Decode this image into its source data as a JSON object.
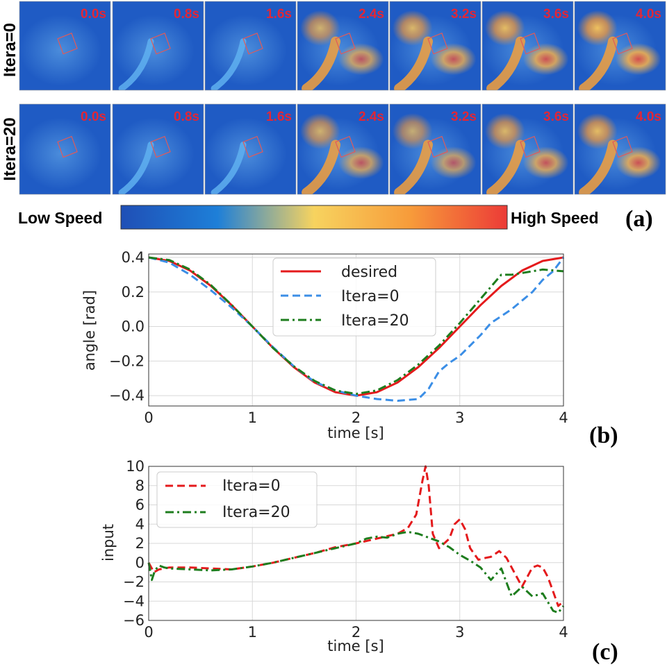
{
  "panel_a": {
    "rows": [
      {
        "label": "Itera=0",
        "times": [
          "0.0s",
          "0.8s",
          "1.6s",
          "2.4s",
          "3.2s",
          "3.6s",
          "4.0s"
        ]
      },
      {
        "label": "Itera=20",
        "times": [
          "0.0s",
          "0.8s",
          "1.6s",
          "2.4s",
          "3.2s",
          "3.6s",
          "4.0s"
        ]
      }
    ],
    "colorbar": {
      "low_label": "Low Speed",
      "high_label": "High Speed",
      "colors": [
        "#1f4fb6",
        "#1e7fd8",
        "#f7d35f",
        "#f79b3a",
        "#ec3b37"
      ]
    },
    "letter": "(a)"
  },
  "chart_data": [
    {
      "id": "b",
      "type": "line",
      "letter": "(b)",
      "xlabel": "time [s]",
      "ylabel": "angle [rad]",
      "xlim": [
        0,
        4
      ],
      "ylim": [
        -0.46,
        0.42
      ],
      "xticks": [
        0,
        1,
        2,
        3,
        4
      ],
      "yticks": [
        0.4,
        0.2,
        0.0,
        -0.2,
        -0.4
      ],
      "ytick_labels": [
        "0.4",
        "0.2",
        "0.0",
        "−0.2",
        "−0.4"
      ],
      "grid": true,
      "legend_position": "top-right",
      "series": [
        {
          "name": "desired",
          "color": "#e41a1c",
          "style": "solid",
          "x": [
            0,
            0.2,
            0.4,
            0.6,
            0.8,
            1.0,
            1.2,
            1.4,
            1.6,
            1.8,
            2.0,
            2.2,
            2.4,
            2.6,
            2.8,
            3.0,
            3.2,
            3.4,
            3.6,
            3.8,
            4.0
          ],
          "y": [
            0.4,
            0.38,
            0.324,
            0.235,
            0.124,
            0.0,
            -0.124,
            -0.235,
            -0.324,
            -0.38,
            -0.4,
            -0.38,
            -0.324,
            -0.235,
            -0.124,
            0.0,
            0.124,
            0.235,
            0.324,
            0.38,
            0.4
          ]
        },
        {
          "name": "Itera=0",
          "color": "#3b8ee6",
          "style": "dashed",
          "x": [
            0,
            0.2,
            0.4,
            0.6,
            0.8,
            1.0,
            1.2,
            1.4,
            1.6,
            1.8,
            2.0,
            2.2,
            2.4,
            2.6,
            2.7,
            2.8,
            2.9,
            3.0,
            3.1,
            3.2,
            3.3,
            3.4,
            3.5,
            3.6,
            3.7,
            3.8,
            3.9,
            4.0
          ],
          "y": [
            0.4,
            0.37,
            0.3,
            0.21,
            0.11,
            0.0,
            -0.12,
            -0.23,
            -0.32,
            -0.37,
            -0.4,
            -0.42,
            -0.43,
            -0.42,
            -0.36,
            -0.26,
            -0.21,
            -0.17,
            -0.11,
            -0.05,
            0.02,
            0.06,
            0.1,
            0.15,
            0.2,
            0.27,
            0.32,
            0.4
          ]
        },
        {
          "name": "Itera=20",
          "color": "#1e7d1e",
          "style": "dashdot",
          "x": [
            0,
            0.2,
            0.4,
            0.6,
            0.8,
            1.0,
            1.2,
            1.4,
            1.6,
            1.8,
            2.0,
            2.2,
            2.4,
            2.6,
            2.8,
            3.0,
            3.2,
            3.4,
            3.5,
            3.6,
            3.8,
            4.0
          ],
          "y": [
            0.4,
            0.385,
            0.33,
            0.24,
            0.125,
            0.0,
            -0.125,
            -0.23,
            -0.315,
            -0.37,
            -0.39,
            -0.37,
            -0.31,
            -0.22,
            -0.11,
            0.02,
            0.16,
            0.3,
            0.3,
            0.31,
            0.33,
            0.32
          ]
        }
      ]
    },
    {
      "id": "c",
      "type": "line",
      "letter": "(c)",
      "xlabel": "time [s]",
      "ylabel": "input",
      "xlim": [
        0,
        4
      ],
      "ylim": [
        -6,
        10
      ],
      "xticks": [
        0,
        1,
        2,
        3,
        4
      ],
      "yticks": [
        10,
        8,
        6,
        4,
        2,
        0,
        -2,
        -4,
        -6
      ],
      "ytick_labels": [
        "10",
        "8",
        "6",
        "4",
        "2",
        "0",
        "−2",
        "−4",
        "−6"
      ],
      "grid": true,
      "legend_position": "top-left",
      "series": [
        {
          "name": "Itera=0",
          "color": "#e41a1c",
          "style": "dashed",
          "x": [
            0,
            0.05,
            0.1,
            0.2,
            0.4,
            0.6,
            0.8,
            1.0,
            1.2,
            1.4,
            1.6,
            1.8,
            2.0,
            2.2,
            2.4,
            2.5,
            2.58,
            2.64,
            2.67,
            2.7,
            2.74,
            2.8,
            2.9,
            2.95,
            3.0,
            3.05,
            3.1,
            3.18,
            3.25,
            3.3,
            3.38,
            3.45,
            3.5,
            3.6,
            3.65,
            3.7,
            3.75,
            3.8,
            3.85,
            3.9,
            3.95,
            4.0
          ],
          "y": [
            0,
            -1.0,
            -0.7,
            -0.5,
            -0.5,
            -0.6,
            -0.7,
            -0.4,
            0.0,
            0.5,
            1.0,
            1.6,
            2.0,
            2.5,
            3.0,
            3.6,
            5.0,
            8.5,
            10.0,
            8.0,
            3.0,
            1.5,
            2.5,
            4.0,
            4.5,
            3.5,
            1.5,
            0.3,
            0.5,
            0.6,
            1.2,
            0.5,
            -0.5,
            -2.5,
            -1.5,
            -0.5,
            -0.3,
            -0.5,
            -1.5,
            -3.0,
            -4.5,
            -4.0
          ]
        },
        {
          "name": "Itera=20",
          "color": "#1e7d1e",
          "style": "dashdot",
          "x": [
            0,
            0.03,
            0.06,
            0.1,
            0.15,
            0.2,
            0.4,
            0.6,
            0.8,
            1.0,
            1.2,
            1.4,
            1.6,
            1.8,
            2.0,
            2.1,
            2.2,
            2.3,
            2.4,
            2.5,
            2.6,
            2.7,
            2.8,
            2.9,
            3.0,
            3.1,
            3.2,
            3.3,
            3.4,
            3.5,
            3.6,
            3.7,
            3.8,
            3.9,
            3.95,
            4.0
          ],
          "y": [
            0,
            -1.8,
            -0.8,
            -0.3,
            -0.5,
            -0.6,
            -0.7,
            -0.8,
            -0.7,
            -0.4,
            0.0,
            0.5,
            1.0,
            1.5,
            2.0,
            2.5,
            2.7,
            2.6,
            3.0,
            3.2,
            3.0,
            2.6,
            2.2,
            1.6,
            0.8,
            0.2,
            -0.5,
            -1.8,
            -0.6,
            -3.5,
            -2.5,
            -3.5,
            -3.2,
            -5.0,
            -5.2,
            -4.5
          ]
        }
      ]
    }
  ]
}
